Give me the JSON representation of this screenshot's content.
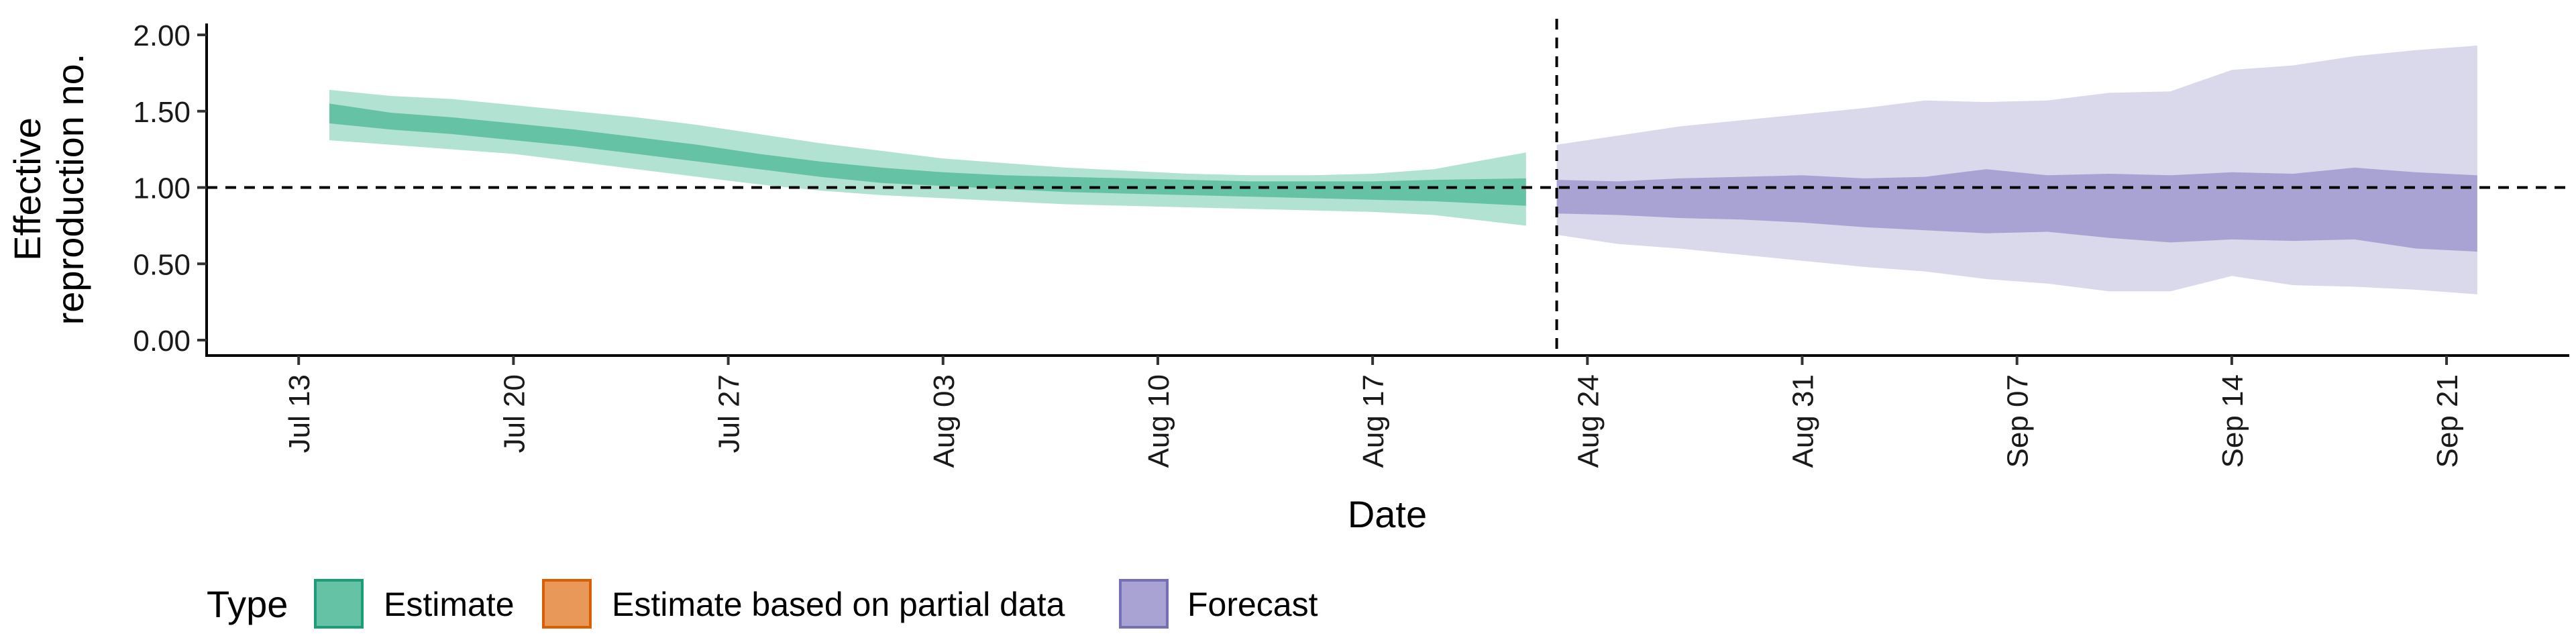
{
  "chart_data": {
    "type": "area",
    "xlabel": "Date",
    "ylabel_lines": [
      "Effective",
      "reproduction no."
    ],
    "x_ticks": [
      "Jul 13",
      "Jul 20",
      "Jul 27",
      "Aug 03",
      "Aug 10",
      "Aug 17",
      "Aug 24",
      "Aug 31",
      "Sep 07",
      "Sep 14",
      "Sep 21"
    ],
    "x_range": [
      "2020-07-10",
      "2020-09-25"
    ],
    "y_ticks": [
      "0.00",
      "0.50",
      "1.00",
      "1.50",
      "2.00"
    ],
    "ylim": [
      0,
      2.0
    ],
    "reference_line_y": 1.0,
    "forecast_start_line": "2020-08-23",
    "grid": false,
    "legend": {
      "title": "Type",
      "position": "bottom-left",
      "entries": [
        {
          "label": "Estimate",
          "fill": "#66c2a5",
          "border": "#1b9e77"
        },
        {
          "label": "Estimate based on partial data",
          "fill": "#e8995a",
          "border": "#d95f02"
        },
        {
          "label": "Forecast",
          "fill": "#a8a3d3",
          "border": "#7570b3"
        }
      ]
    },
    "series": [
      {
        "name": "Estimate",
        "color_outer": "#b2e2d2",
        "color_inner": "#66c2a5",
        "dates": [
          "2020-07-14",
          "2020-07-16",
          "2020-07-18",
          "2020-07-20",
          "2020-07-22",
          "2020-07-24",
          "2020-07-26",
          "2020-07-28",
          "2020-07-30",
          "2020-08-01",
          "2020-08-03",
          "2020-08-05",
          "2020-08-07",
          "2020-08-09",
          "2020-08-11",
          "2020-08-13",
          "2020-08-15",
          "2020-08-17",
          "2020-08-19",
          "2020-08-22"
        ],
        "outer_low": [
          1.31,
          1.28,
          1.25,
          1.22,
          1.17,
          1.12,
          1.07,
          1.02,
          0.98,
          0.95,
          0.93,
          0.91,
          0.89,
          0.88,
          0.87,
          0.86,
          0.85,
          0.84,
          0.82,
          0.75
        ],
        "inner_low": [
          1.42,
          1.38,
          1.35,
          1.31,
          1.27,
          1.22,
          1.17,
          1.12,
          1.07,
          1.03,
          1.01,
          0.99,
          0.97,
          0.96,
          0.95,
          0.94,
          0.93,
          0.92,
          0.91,
          0.88
        ],
        "inner_high": [
          1.55,
          1.49,
          1.46,
          1.42,
          1.38,
          1.33,
          1.28,
          1.22,
          1.17,
          1.13,
          1.1,
          1.08,
          1.07,
          1.06,
          1.05,
          1.04,
          1.04,
          1.04,
          1.05,
          1.06
        ],
        "outer_high": [
          1.64,
          1.6,
          1.58,
          1.54,
          1.5,
          1.46,
          1.41,
          1.35,
          1.29,
          1.24,
          1.19,
          1.16,
          1.13,
          1.11,
          1.09,
          1.08,
          1.08,
          1.09,
          1.12,
          1.23
        ]
      },
      {
        "name": "Forecast",
        "color_outer": "#dad8eb",
        "color_inner": "#a8a3d3",
        "dates": [
          "2020-08-23",
          "2020-08-25",
          "2020-08-27",
          "2020-08-29",
          "2020-08-31",
          "2020-09-02",
          "2020-09-04",
          "2020-09-06",
          "2020-09-08",
          "2020-09-10",
          "2020-09-12",
          "2020-09-14",
          "2020-09-16",
          "2020-09-18",
          "2020-09-20",
          "2020-09-22"
        ],
        "outer_low": [
          0.69,
          0.63,
          0.6,
          0.56,
          0.52,
          0.48,
          0.45,
          0.4,
          0.37,
          0.32,
          0.32,
          0.42,
          0.36,
          0.35,
          0.33,
          0.3
        ],
        "inner_low": [
          0.83,
          0.82,
          0.8,
          0.79,
          0.77,
          0.74,
          0.72,
          0.7,
          0.71,
          0.67,
          0.64,
          0.66,
          0.65,
          0.66,
          0.6,
          0.58
        ],
        "inner_high": [
          1.05,
          1.04,
          1.06,
          1.07,
          1.08,
          1.06,
          1.07,
          1.12,
          1.08,
          1.09,
          1.08,
          1.1,
          1.09,
          1.13,
          1.1,
          1.08
        ],
        "outer_high": [
          1.28,
          1.34,
          1.4,
          1.44,
          1.48,
          1.52,
          1.57,
          1.56,
          1.57,
          1.62,
          1.63,
          1.77,
          1.8,
          1.86,
          1.9,
          1.93
        ]
      }
    ]
  }
}
